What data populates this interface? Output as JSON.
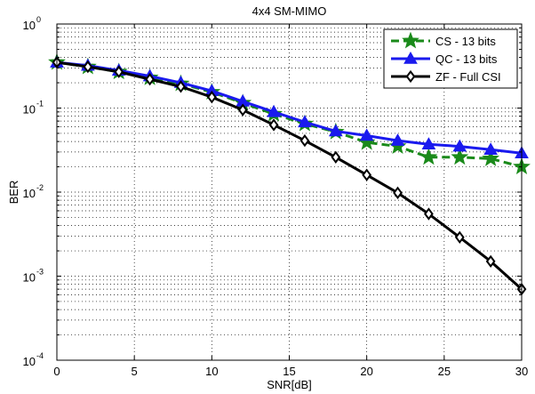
{
  "chart_data": {
    "type": "line",
    "title": "4x4 SM-MIMO",
    "xlabel": "SNR[dB]",
    "ylabel": "BER",
    "xlim": [
      0,
      30
    ],
    "ylim": [
      0.0001,
      1
    ],
    "yscale": "log",
    "grid": true,
    "legend_position": "top-right",
    "x": [
      0,
      2,
      4,
      6,
      8,
      10,
      12,
      14,
      16,
      18,
      20,
      22,
      24,
      26,
      28,
      30
    ],
    "x_ticks": [
      0,
      5,
      10,
      15,
      20,
      25,
      30
    ],
    "x_tick_labels": [
      "0",
      "5",
      "10",
      "15",
      "20",
      "25",
      "30"
    ],
    "y_ticks": [
      1,
      0.1,
      0.01,
      0.001,
      0.0001
    ],
    "y_tick_labels": [
      {
        "base": "10",
        "exp": "0"
      },
      {
        "base": "10",
        "exp": "-1"
      },
      {
        "base": "10",
        "exp": "-2"
      },
      {
        "base": "10",
        "exp": "-3"
      },
      {
        "base": "10",
        "exp": "-4"
      }
    ],
    "series": [
      {
        "name": "CS - 13 bits",
        "color": "#1a8a1a",
        "line_style": "dashed",
        "marker": "star",
        "values": [
          0.35,
          0.31,
          0.27,
          0.23,
          0.195,
          0.155,
          0.115,
          0.085,
          0.065,
          0.052,
          0.039,
          0.035,
          0.026,
          0.026,
          0.025,
          0.02
        ]
      },
      {
        "name": "QC - 13 bits",
        "color": "#1a1aee",
        "line_style": "solid",
        "marker": "triangle",
        "values": [
          0.35,
          0.32,
          0.28,
          0.24,
          0.2,
          0.16,
          0.12,
          0.09,
          0.068,
          0.053,
          0.047,
          0.041,
          0.037,
          0.035,
          0.032,
          0.029
        ]
      },
      {
        "name": "ZF - Full CSI",
        "color": "#000000",
        "line_style": "solid",
        "marker": "diamond",
        "values": [
          0.35,
          0.31,
          0.27,
          0.22,
          0.18,
          0.135,
          0.095,
          0.063,
          0.041,
          0.026,
          0.016,
          0.0098,
          0.0055,
          0.0029,
          0.0015,
          0.0007
        ]
      }
    ]
  }
}
